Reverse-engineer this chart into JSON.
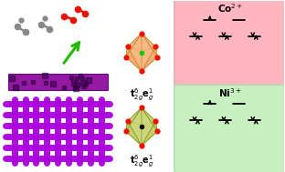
{
  "co_box_color": "#FFB6C1",
  "ni_box_color": "#C8F0C0",
  "co_label": "Co$^{2+}$",
  "ni_label": "Ni$^{3+}$",
  "t2g_eg_label": "t$_{2g}^{6}$e$_g^{1}$",
  "oct_top_face": "#F4A460",
  "oct_top_center": "#00CC00",
  "oct_bot_face": "#BBCC55",
  "oct_bot_center": "#111111",
  "vertex_color": "#EE1100",
  "bg_color": "#FFFFFF",
  "arrow_color": "#22BB00",
  "mesh_color": "#AA00DD",
  "film_color": "#880099"
}
